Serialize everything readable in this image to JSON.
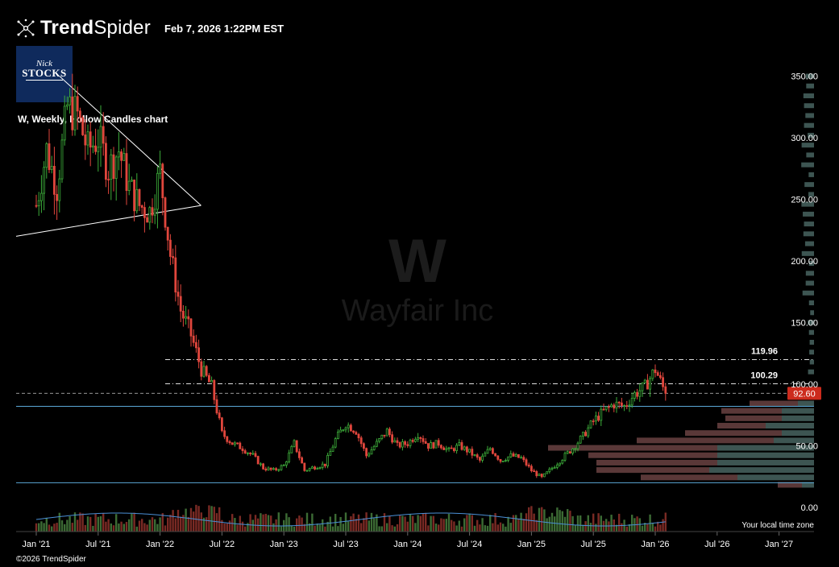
{
  "header": {
    "brand_name_bold": "Trend",
    "brand_name_light": "Spider",
    "timestamp": "Feb 7, 2026 1:22PM EST"
  },
  "logo": {
    "line1": "Nick",
    "line2": "STOCKS"
  },
  "footer": {
    "copyright": "©2026 TrendSpider"
  },
  "chart_data": {
    "type": "candlestick",
    "title": "W, Weekly, Hollow Candles chart",
    "watermark_symbol": "W",
    "watermark_name": "Wayfair Inc",
    "y_axis": {
      "min": 0,
      "max": 350,
      "ticks": [
        "350.00",
        "300.00",
        "250.00",
        "200.00",
        "150.00",
        "100.00",
        "50.00",
        "0.00"
      ]
    },
    "x_ticks": [
      "Jan '21",
      "Jul '21",
      "Jan '22",
      "Jul '22",
      "Jan '23",
      "Jul '23",
      "Jan '24",
      "Jul '24",
      "Jan '25",
      "Jul '25",
      "Jan '26",
      "Jul '26",
      "Jan '27"
    ],
    "x_tick_months": [
      0,
      6,
      12,
      18,
      24,
      30,
      36,
      42,
      48,
      54,
      60,
      66,
      72
    ],
    "data_start": "2020-12",
    "last_price": {
      "value": 92.6,
      "label": "92.60",
      "color": "#cc2b1d"
    },
    "horizontal_levels": [
      {
        "value": 119.96,
        "label": "119.96",
        "style": "dash-dot",
        "from_month": 12.5
      },
      {
        "value": 100.29,
        "label": "100.29",
        "style": "dash-dot",
        "from_month": 12.5
      },
      {
        "value": 82,
        "label": "",
        "style": "solid-blue"
      },
      {
        "value": 20,
        "label": "",
        "style": "solid-blue"
      }
    ],
    "trendlines": [
      {
        "from": [
          0,
          220
        ],
        "to": [
          14.8,
          245
        ]
      },
      {
        "from": [
          4.2,
          350
        ],
        "to": [
          14.8,
          245
        ]
      }
    ],
    "price_path": [
      [
        0,
        245
      ],
      [
        1,
        290
      ],
      [
        2,
        260
      ],
      [
        3,
        325
      ],
      [
        4,
        318
      ],
      [
        5,
        290
      ],
      [
        6,
        300
      ],
      [
        7,
        275
      ],
      [
        8,
        290
      ],
      [
        9,
        260
      ],
      [
        10,
        245
      ],
      [
        11,
        240
      ],
      [
        12,
        272
      ],
      [
        13,
        205
      ],
      [
        14,
        160
      ],
      [
        15,
        140
      ],
      [
        16,
        112
      ],
      [
        17,
        98
      ],
      [
        18,
        60
      ],
      [
        19,
        52
      ],
      [
        20,
        48
      ],
      [
        21,
        42
      ],
      [
        22,
        32
      ],
      [
        23,
        30
      ],
      [
        24,
        34
      ],
      [
        25,
        52
      ],
      [
        26,
        30
      ],
      [
        27,
        33
      ],
      [
        28,
        35
      ],
      [
        29,
        55
      ],
      [
        30,
        68
      ],
      [
        31,
        62
      ],
      [
        32,
        42
      ],
      [
        33,
        52
      ],
      [
        34,
        62
      ],
      [
        35,
        50
      ],
      [
        36,
        52
      ],
      [
        37,
        60
      ],
      [
        38,
        50
      ],
      [
        39,
        52
      ],
      [
        40,
        46
      ],
      [
        41,
        50
      ],
      [
        42,
        45
      ],
      [
        43,
        38
      ],
      [
        44,
        48
      ],
      [
        45,
        38
      ],
      [
        46,
        42
      ],
      [
        47,
        40
      ],
      [
        48,
        30
      ],
      [
        49,
        24
      ],
      [
        50,
        32
      ],
      [
        51,
        40
      ],
      [
        52,
        48
      ],
      [
        53,
        58
      ],
      [
        54,
        70
      ],
      [
        55,
        78
      ],
      [
        56,
        84
      ],
      [
        57,
        82
      ],
      [
        58,
        92
      ],
      [
        59,
        98
      ],
      [
        60,
        112
      ],
      [
        61,
        92.6
      ]
    ],
    "volume_profile_note": "horizontal volume-by-price bars on right edge",
    "footer_right_label": "Your local time zone"
  }
}
